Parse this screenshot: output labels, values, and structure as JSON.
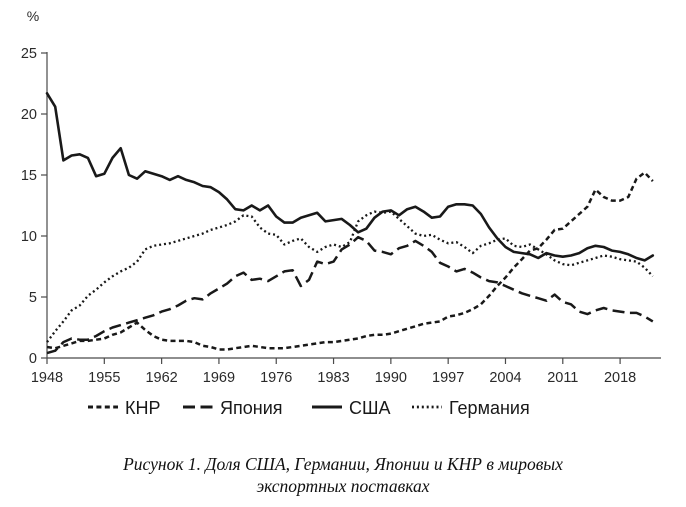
{
  "colors": {
    "line": "#191919",
    "axis": "#4a4a4a",
    "tick_text": "#2a2a2a",
    "background": "#ffffff"
  },
  "chart_data": {
    "type": "line",
    "title": "",
    "xlabel": "",
    "ylabel": "%",
    "x_start": 1948,
    "x_end": 2022,
    "xticks": [
      1948,
      1955,
      1962,
      1969,
      1976,
      1983,
      1990,
      1997,
      2004,
      2011,
      2018
    ],
    "yticks": [
      0,
      5,
      10,
      15,
      20,
      25
    ],
    "ylim": [
      0,
      25
    ],
    "grid": false,
    "legend_position": "bottom",
    "series": [
      {
        "id": "knr",
        "name": "КНР",
        "line_style": "short-dash",
        "values": [
          0.9,
          0.8,
          1.0,
          1.2,
          1.4,
          1.4,
          1.5,
          1.6,
          1.9,
          2.1,
          2.5,
          2.9,
          2.3,
          1.8,
          1.5,
          1.4,
          1.4,
          1.4,
          1.3,
          1.0,
          0.9,
          0.7,
          0.7,
          0.8,
          0.9,
          1.0,
          0.9,
          0.8,
          0.8,
          0.8,
          0.9,
          1.0,
          1.1,
          1.2,
          1.3,
          1.3,
          1.4,
          1.5,
          1.6,
          1.8,
          1.9,
          1.9,
          2.0,
          2.2,
          2.4,
          2.6,
          2.8,
          2.9,
          3.0,
          3.4,
          3.5,
          3.7,
          4.0,
          4.4,
          5.1,
          5.9,
          6.6,
          7.4,
          8.1,
          8.8,
          9.0,
          9.7,
          10.5,
          10.6,
          11.2,
          11.8,
          12.4,
          13.8,
          13.2,
          12.9,
          12.9,
          13.2,
          14.7,
          15.2,
          14.5
        ]
      },
      {
        "id": "japan",
        "name": "Япония",
        "line_style": "long-dash",
        "values": [
          0.4,
          0.6,
          1.3,
          1.6,
          1.5,
          1.5,
          1.8,
          2.2,
          2.5,
          2.7,
          2.9,
          3.1,
          3.3,
          3.5,
          3.8,
          4.0,
          4.3,
          4.7,
          4.9,
          4.8,
          5.3,
          5.7,
          6.1,
          6.7,
          7.0,
          6.4,
          6.5,
          6.3,
          6.7,
          7.1,
          7.2,
          5.9,
          6.4,
          7.9,
          7.7,
          7.9,
          8.9,
          9.3,
          9.9,
          9.6,
          8.8,
          8.7,
          8.5,
          9.0,
          9.2,
          9.6,
          9.2,
          8.7,
          7.8,
          7.5,
          7.1,
          7.3,
          7.0,
          6.6,
          6.3,
          6.2,
          5.9,
          5.6,
          5.3,
          5.1,
          4.9,
          4.7,
          5.2,
          4.6,
          4.4,
          3.8,
          3.6,
          3.9,
          4.1,
          3.9,
          3.8,
          3.7,
          3.7,
          3.4,
          3.0
        ]
      },
      {
        "id": "usa",
        "name": "США",
        "line_style": "solid",
        "values": [
          21.7,
          20.6,
          16.2,
          16.6,
          16.7,
          16.4,
          14.9,
          15.1,
          16.4,
          17.2,
          15.0,
          14.7,
          15.3,
          15.1,
          14.9,
          14.6,
          14.9,
          14.6,
          14.4,
          14.1,
          14.0,
          13.6,
          13.0,
          12.2,
          12.1,
          12.5,
          12.1,
          12.5,
          11.6,
          11.1,
          11.1,
          11.5,
          11.7,
          11.9,
          11.2,
          11.3,
          11.4,
          10.9,
          10.3,
          10.6,
          11.5,
          12.0,
          12.1,
          11.7,
          12.2,
          12.4,
          12.0,
          11.5,
          11.6,
          12.4,
          12.6,
          12.6,
          12.5,
          11.8,
          10.7,
          9.8,
          9.1,
          8.7,
          8.6,
          8.5,
          8.2,
          8.6,
          8.4,
          8.3,
          8.4,
          8.6,
          9.0,
          9.2,
          9.1,
          8.8,
          8.7,
          8.5,
          8.2,
          8.0,
          8.4
        ]
      },
      {
        "id": "germany",
        "name": "Германия",
        "line_style": "dotted",
        "values": [
          1.3,
          2.2,
          3.0,
          3.9,
          4.3,
          5.1,
          5.6,
          6.2,
          6.7,
          7.1,
          7.4,
          7.9,
          8.9,
          9.2,
          9.3,
          9.4,
          9.6,
          9.8,
          10.0,
          10.2,
          10.5,
          10.7,
          10.9,
          11.2,
          11.7,
          11.6,
          10.7,
          10.2,
          10.1,
          9.3,
          9.6,
          9.8,
          9.1,
          8.7,
          9.1,
          9.3,
          9.1,
          9.5,
          11.2,
          11.7,
          12.0,
          11.9,
          12.0,
          11.4,
          10.8,
          10.2,
          10.0,
          10.1,
          9.7,
          9.4,
          9.5,
          9.1,
          8.6,
          9.2,
          9.4,
          9.7,
          9.8,
          9.2,
          9.1,
          9.3,
          8.9,
          8.5,
          8.0,
          7.7,
          7.6,
          7.8,
          8.0,
          8.2,
          8.4,
          8.3,
          8.1,
          8.0,
          7.9,
          7.4,
          6.7
        ]
      }
    ]
  },
  "legend": {
    "items": [
      "КНР",
      "Япония",
      "США",
      "Германия"
    ]
  },
  "caption": {
    "line1": "Рисунок 1. Доля США, Германии, Японии и КНР в мировых",
    "line2": "экспортных поставках"
  }
}
